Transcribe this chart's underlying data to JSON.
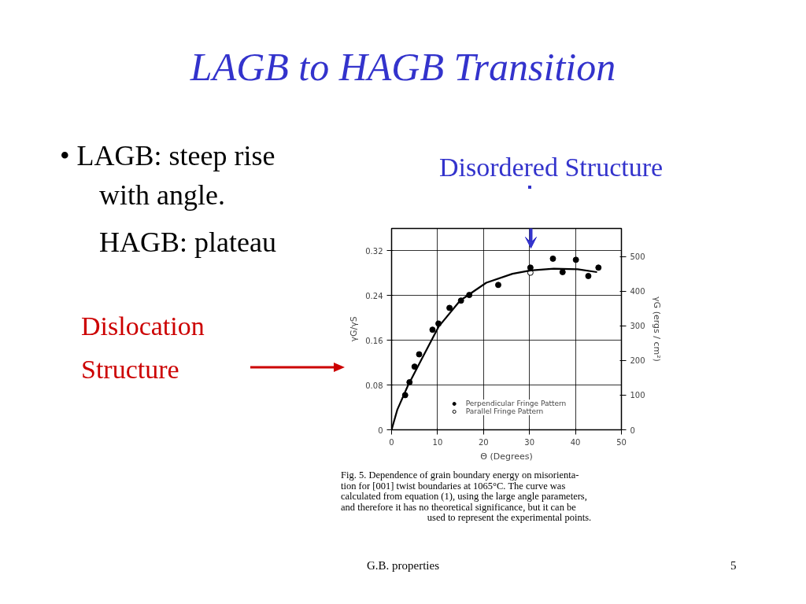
{
  "chart_data": {
    "type": "scatter",
    "title": "LAGB to HAGB Transition",
    "xlabel": "Θ (Degrees)",
    "ylabel": "γG/γS",
    "y2label": "γG (ergs / cm²)",
    "xlim": [
      0,
      50
    ],
    "xticks": [
      0,
      10,
      20,
      30,
      40,
      50
    ],
    "ylim": [
      0,
      0.36
    ],
    "yticks": [
      0,
      0.08,
      0.16,
      0.24,
      0.32
    ],
    "y2lim": [
      0,
      581
    ],
    "y2ticks": [
      0,
      100,
      200,
      300,
      400,
      500
    ],
    "grid": true,
    "legend": "bottom",
    "series": [
      {
        "name": "Perpendicular Fringe Pattern",
        "type": "scatter",
        "marker": "circle",
        "color": "#000000",
        "x": [
          2.95,
          3.9,
          5.0,
          6.0,
          8.9,
          10.2,
          12.6,
          15.1,
          16.9,
          23.2,
          30.2,
          35.1,
          37.2,
          40.1,
          42.8,
          45.0
        ],
        "values": [
          0.062,
          0.085,
          0.113,
          0.135,
          0.179,
          0.19,
          0.218,
          0.231,
          0.241,
          0.259,
          0.29,
          0.306,
          0.282,
          0.304,
          0.275,
          0.29
        ]
      },
      {
        "name": "Parallel Fringe Pattern",
        "type": "scatter",
        "marker": "circle",
        "color": "#ffffff",
        "x": [
          30.2
        ],
        "values": [
          0.281
        ]
      },
      {
        "type": "line",
        "color": "#000000",
        "line_style": "solid",
        "x": [
          0,
          1.25,
          3.5,
          6.4,
          10.2,
          14.9,
          20.6,
          26.3,
          30.2,
          35.3,
          40.5,
          44.7
        ],
        "values": [
          0,
          0.036,
          0.078,
          0.124,
          0.184,
          0.231,
          0.263,
          0.279,
          0.285,
          0.288,
          0.287,
          0.282
        ]
      }
    ],
    "annotations": [
      "• LAGB: steep rise",
      "with angle.",
      "HAGB: plateau",
      "Disordered Structure",
      "Dislocation",
      "Structure",
      "Fig. 5. Dependence of grain boundary energy on misorienta-",
      "tion for [001] twist boundaries at 1065°C.  The curve was",
      "calculated from equation (1), using the large angle parameters,",
      "and therefore it has no theoretical significance, but it can be",
      "used to represent the experimental points.",
      "G.B. properties",
      "5"
    ]
  }
}
